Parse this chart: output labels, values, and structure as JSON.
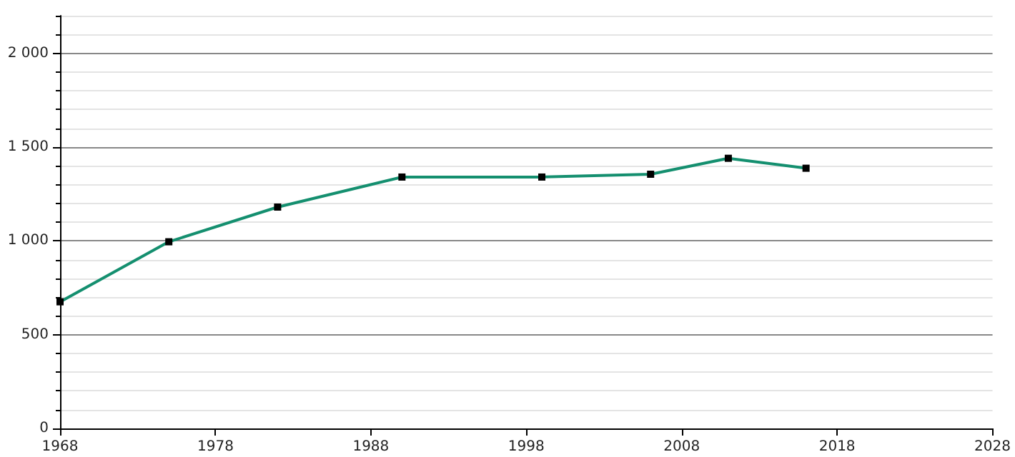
{
  "chart_data": {
    "type": "line",
    "x": [
      1968,
      1975,
      1982,
      1990,
      1999,
      2006,
      2011,
      2016
    ],
    "series": [
      {
        "color": "#148f6f",
        "values": [
          675,
          995,
          1180,
          1340,
          1340,
          1355,
          1440,
          1387
        ]
      }
    ],
    "xlim": [
      1968,
      2028
    ],
    "xticks": [
      1968,
      1978,
      1988,
      1998,
      2008,
      2018,
      2028
    ],
    "ylim": [
      0,
      2200
    ],
    "yticks": [
      0,
      {
        "value": 100,
        "label": null
      },
      {
        "value": 200,
        "label": null
      },
      {
        "value": 300,
        "label": null
      },
      {
        "value": 400,
        "label": null
      },
      500,
      {
        "value": 600,
        "label": null
      },
      {
        "value": 700,
        "label": null
      },
      {
        "value": 800,
        "label": null
      },
      {
        "value": 900,
        "label": null
      },
      {
        "value": 1000,
        "label": "1 000"
      },
      {
        "value": 1100,
        "label": null
      },
      {
        "value": 1200,
        "label": null
      },
      {
        "value": 1300,
        "label": null
      },
      {
        "value": 1400,
        "label": null
      },
      {
        "value": 1500,
        "label": "1 500"
      },
      {
        "value": 1600,
        "label": null
      },
      {
        "value": 1700,
        "label": null
      },
      {
        "value": 1800,
        "label": null
      },
      {
        "value": 1900,
        "label": null
      },
      {
        "value": 2000,
        "label": "2 000"
      },
      {
        "value": 2100,
        "label": null
      },
      {
        "value": 2200,
        "label": null
      }
    ],
    "grid": "y",
    "marker": "square",
    "line_style": "solid"
  }
}
